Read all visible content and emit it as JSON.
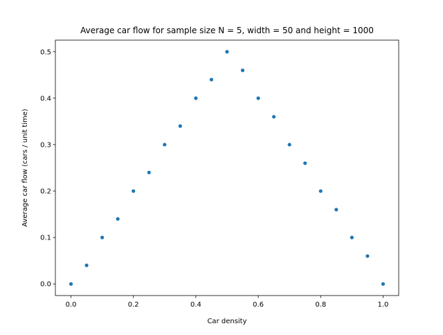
{
  "chart_data": {
    "type": "scatter",
    "title": "Average car flow for sample size N = 5, width = 50 and height = 1000",
    "xlabel": "Car density",
    "ylabel": "Average car flow (cars / unit time)",
    "xlim": [
      -0.05,
      1.05
    ],
    "ylim": [
      -0.025,
      0.525
    ],
    "xticks": [
      0.0,
      0.2,
      0.4,
      0.6,
      0.8,
      1.0
    ],
    "xtick_labels": [
      "0.0",
      "0.2",
      "0.4",
      "0.6",
      "0.8",
      "1.0"
    ],
    "yticks": [
      0.0,
      0.1,
      0.2,
      0.3,
      0.4,
      0.5
    ],
    "ytick_labels": [
      "0.0",
      "0.1",
      "0.2",
      "0.3",
      "0.4",
      "0.5"
    ],
    "grid": false,
    "series": [
      {
        "color": "#1f77b4",
        "x": [
          0.0,
          0.05,
          0.1,
          0.15,
          0.2,
          0.25,
          0.3,
          0.35,
          0.4,
          0.45,
          0.5,
          0.55,
          0.6,
          0.65,
          0.7,
          0.75,
          0.8,
          0.85,
          0.9,
          0.95,
          1.0
        ],
        "y": [
          0.0,
          0.04,
          0.1,
          0.14,
          0.2,
          0.24,
          0.3,
          0.34,
          0.4,
          0.44,
          0.5,
          0.46,
          0.4,
          0.36,
          0.3,
          0.26,
          0.2,
          0.16,
          0.1,
          0.06,
          0.0
        ]
      }
    ]
  }
}
